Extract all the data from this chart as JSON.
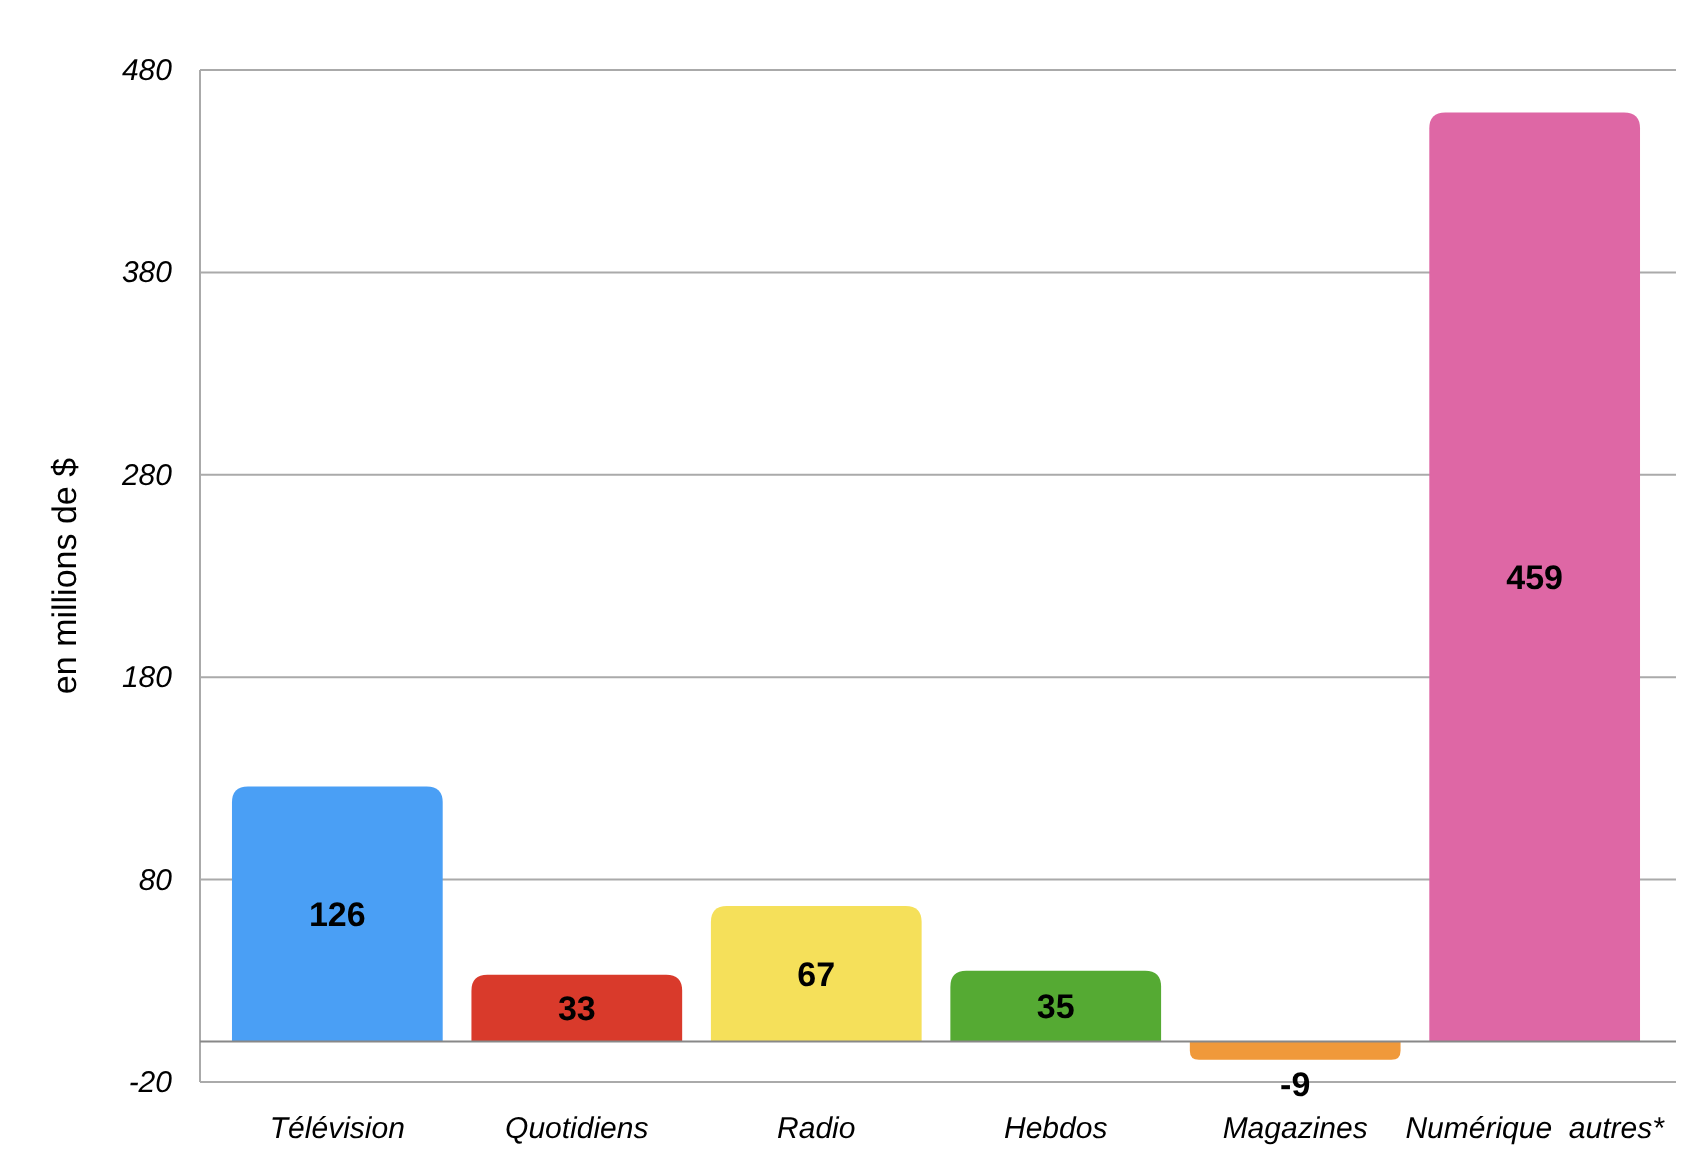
{
  "chart_data": {
    "type": "bar",
    "ylabel": "en millions de $",
    "categories": [
      "Télévision",
      "Quotidiens",
      "Radio",
      "Hebdos",
      "Magazines",
      "Numérique  autres*"
    ],
    "values": [
      126,
      33,
      67,
      35,
      -9,
      459
    ],
    "colors": [
      "#4a9ff5",
      "#d93a2b",
      "#f5e05a",
      "#55aa33",
      "#f0993a",
      "#de67a5"
    ],
    "ylim": [
      -20,
      480
    ],
    "yticks": [
      -20,
      80,
      180,
      280,
      380,
      480
    ],
    "grid": "y",
    "data_labels": true
  }
}
